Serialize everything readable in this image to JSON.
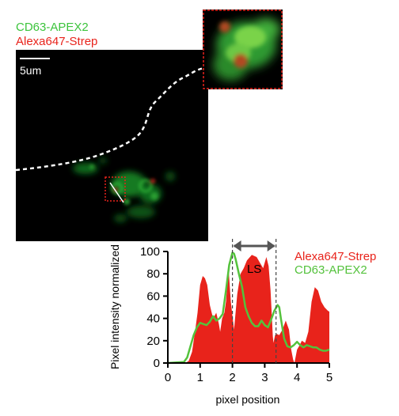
{
  "image_labels": {
    "stain_green": "CD63-APEX2",
    "stain_red": "Alexa647-Strep",
    "scale_bar": "5um",
    "colors": {
      "green": "#3cc43c",
      "red": "#e8231b"
    }
  },
  "chart_data": {
    "type": "area",
    "title": "",
    "xlabel": "pixel position",
    "ylabel": "Pixel intensity normalized",
    "xlim": [
      0,
      5
    ],
    "ylim": [
      0,
      100
    ],
    "xticks": [
      0,
      1,
      2,
      3,
      4,
      5
    ],
    "yticks": [
      0,
      20,
      40,
      60,
      80,
      100
    ],
    "legend_position": "top-right",
    "bracket": {
      "label": "LS",
      "x_range": [
        2.0,
        3.35
      ]
    },
    "series": [
      {
        "name": "Alexa647-Strep",
        "style": "filled-area",
        "color": "#e8231b",
        "x": [
          0,
          0.55,
          0.65,
          0.75,
          0.85,
          0.92,
          1.0,
          1.08,
          1.15,
          1.22,
          1.3,
          1.4,
          1.5,
          1.58,
          1.62,
          1.68,
          1.75,
          1.8,
          1.88,
          1.95,
          2.05,
          2.15,
          2.25,
          2.35,
          2.45,
          2.6,
          2.75,
          2.85,
          2.95,
          3.05,
          3.12,
          3.18,
          3.22,
          3.25,
          3.27,
          3.32,
          3.38,
          3.45,
          3.55,
          3.65,
          3.75,
          3.82,
          3.88,
          3.92,
          4.0,
          4.08,
          4.15,
          4.25,
          4.35,
          4.45,
          4.55,
          4.65,
          4.75,
          4.85,
          4.95,
          5.0
        ],
        "y": [
          0,
          0,
          2,
          10,
          30,
          45,
          70,
          78,
          76,
          70,
          52,
          40,
          45,
          35,
          28,
          40,
          45,
          55,
          85,
          55,
          30,
          62,
          80,
          85,
          92,
          97,
          95,
          90,
          85,
          95,
          87,
          65,
          42,
          24,
          18,
          25,
          26,
          25,
          30,
          38,
          30,
          12,
          3,
          0,
          12,
          16,
          20,
          18,
          28,
          55,
          68,
          65,
          55,
          50,
          47,
          46
        ]
      },
      {
        "name": "CD63-APEX2",
        "style": "line",
        "color": "#54c23c",
        "x": [
          0,
          0.5,
          0.6,
          0.7,
          0.8,
          0.9,
          1.0,
          1.1,
          1.2,
          1.3,
          1.4,
          1.5,
          1.6,
          1.7,
          1.8,
          1.9,
          2.0,
          2.05,
          2.1,
          2.2,
          2.3,
          2.4,
          2.5,
          2.6,
          2.7,
          2.8,
          2.9,
          3.0,
          3.1,
          3.2,
          3.3,
          3.4,
          3.45,
          3.5,
          3.6,
          3.7,
          3.8,
          3.9,
          4.0,
          4.1,
          4.2,
          4.3,
          4.4,
          4.5,
          4.6,
          4.7,
          4.8,
          4.9,
          5.0
        ],
        "y": [
          0,
          1,
          5,
          15,
          25,
          32,
          36,
          35,
          34,
          37,
          42,
          38,
          40,
          44,
          65,
          88,
          99,
          98,
          93,
          80,
          68,
          50,
          42,
          36,
          33,
          33,
          38,
          34,
          32,
          39,
          47,
          52,
          50,
          40,
          22,
          15,
          14,
          16,
          19,
          16,
          14,
          16,
          15,
          14,
          14,
          12,
          11,
          11,
          12
        ]
      }
    ]
  }
}
